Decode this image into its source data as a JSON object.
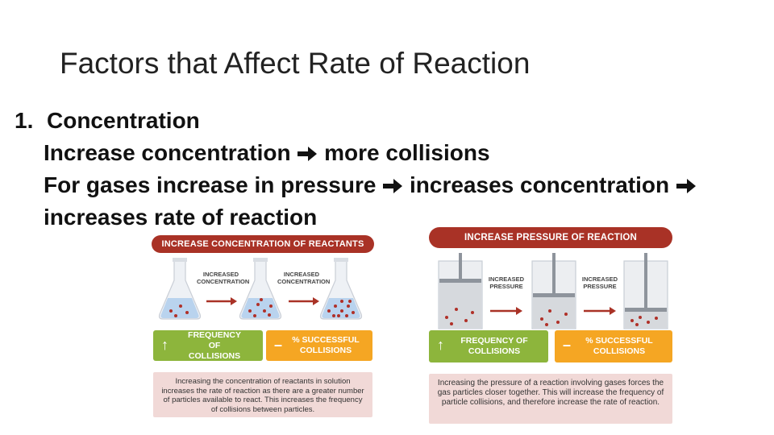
{
  "slide": {
    "title": "Factors that Affect Rate of Reaction",
    "item_number": "1.",
    "item_heading": "Concentration",
    "line1_a": "Increase concentration",
    "line1_b": "more collisions",
    "line2_a": "For gases increase in pressure",
    "line2_b": "increases concentration",
    "line3": "increases rate of reaction",
    "arrow_icon": "right-arrow-icon"
  },
  "left_panel": {
    "banner": "INCREASE CONCENTRATION OF REACTANTS",
    "arrow_label_1": "INCREASED CONCENTRATION",
    "arrow_label_2": "INCREASED CONCENTRATION",
    "stat_1": "FREQUENCY OF COLLISIONS",
    "stat_2": "% SUCCESSFUL COLLISIONS",
    "caption": "Increasing the concentration of reactants in solution increases the rate of reaction as there are a greater number of particles available to react. This increases the frequency of collisions between particles."
  },
  "right_panel": {
    "banner": "INCREASE PRESSURE OF REACTION",
    "arrow_label_1": "INCREASED PRESSURE",
    "arrow_label_2": "INCREASED PRESSURE",
    "stat_1": "FREQUENCY OF COLLISIONS",
    "stat_2": "% SUCCESSFUL COLLISIONS",
    "caption": "Increasing the pressure of a reaction involving gases forces the gas particles closer together. This will increase the frequency of particle collisions, and therefore increase the rate of reaction."
  },
  "colors": {
    "banner": "#a93226",
    "green": "#8db53c",
    "orange": "#f5a623",
    "caption_bg": "#f1d9d7",
    "particle": "#b03028"
  }
}
